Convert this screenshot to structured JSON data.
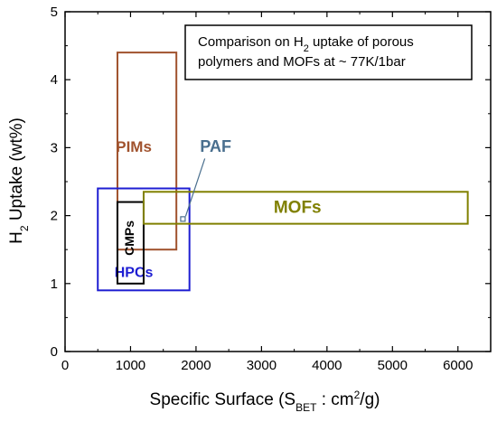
{
  "chart_data": {
    "type": "box-region",
    "note": {
      "line1_pre": "Comparison on H",
      "line1_sub": "2",
      "line1_post": " uptake of porous",
      "line2": "polymers and MOFs at ~ 77K/1bar"
    },
    "xlabel": {
      "pre": "Specific Surface (S",
      "sub": "BET",
      "mid": " : cm",
      "sup": "2",
      "post": "/g)"
    },
    "ylabel": {
      "pre": "H",
      "sub": "2",
      "post": " Uptake (wt%)"
    },
    "xlim": [
      0,
      6500
    ],
    "ylim": [
      0,
      5
    ],
    "xticks": [
      "0",
      "1000",
      "2000",
      "3000",
      "4000",
      "5000",
      "6000"
    ],
    "yticks": [
      "0",
      "1",
      "2",
      "3",
      "4",
      "5"
    ],
    "regions": [
      {
        "label": "PIMs",
        "x": [
          800,
          1700
        ],
        "y": [
          1.5,
          4.4
        ],
        "color": "#a0522d",
        "stroke_width": 2,
        "label_at": [
          1050,
          3.0
        ],
        "label_size": 17
      },
      {
        "label": "HPCs",
        "x": [
          500,
          1900
        ],
        "y": [
          0.9,
          2.4
        ],
        "color": "#1e1ed2",
        "stroke_width": 2,
        "label_at": [
          1050,
          1.15
        ],
        "label_size": 16
      },
      {
        "label": "CMPs",
        "x": [
          800,
          1200
        ],
        "y": [
          1.0,
          2.2
        ],
        "color": "#000000",
        "stroke_width": 2,
        "label_at": [
          1000,
          1.67
        ],
        "label_size": 14,
        "vertical": true
      },
      {
        "label": "MOFs",
        "x": [
          1200,
          6150
        ],
        "y": [
          1.88,
          2.35
        ],
        "color": "#808000",
        "stroke_width": 2,
        "label_at": [
          3550,
          2.11
        ],
        "label_size": 19
      }
    ],
    "point": {
      "label": "PAF",
      "x": 1800,
      "y": 1.95,
      "color": "#4a6f8e",
      "label_at": [
        2300,
        3.0
      ]
    }
  }
}
